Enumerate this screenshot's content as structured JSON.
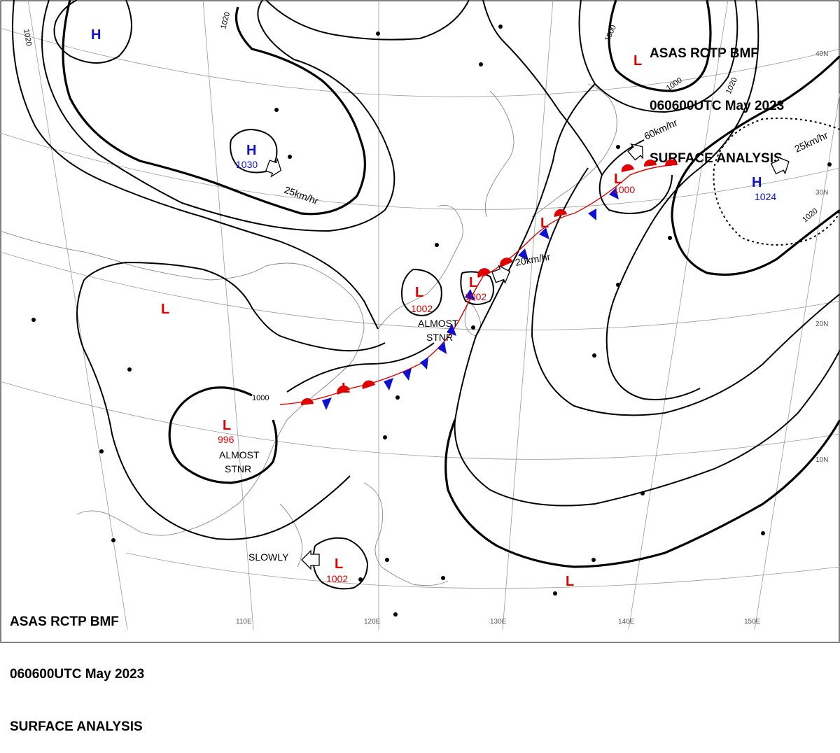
{
  "header": {
    "line1": "ASAS RCTP BMF",
    "line2": "060600UTC May 2023",
    "line3": "SURFACE ANALYSIS"
  },
  "footer": {
    "line1": "ASAS RCTP BMF",
    "line2": "060600UTC May 2023",
    "line3": "SURFACE ANALYSIS"
  },
  "grid_labels": {
    "lon_110": "110E",
    "lon_120": "120E",
    "lon_130": "130E",
    "lon_140": "140E",
    "lon_150": "150E",
    "lat_40": "40N",
    "lat_30": "30N",
    "lat_20": "20N",
    "lat_10": "10N"
  },
  "isobar_labels": {
    "nw_1020": "1020",
    "top_1020": "1020",
    "ne_1000": "1000",
    "ne_1000b": "1000",
    "ne_1020": "1020",
    "sw_1000": "1000",
    "e_1020": "1020"
  },
  "systems": {
    "high_nw": {
      "letter": "H",
      "pressure": ""
    },
    "high_1030": {
      "letter": "H",
      "pressure": "1030"
    },
    "high_1024": {
      "letter": "H",
      "pressure": "1024"
    },
    "low_ne": {
      "letter": "L",
      "pressure": ""
    },
    "low_1000": {
      "letter": "L",
      "pressure": "1000"
    },
    "low_1002_east": {
      "letter": "L",
      "pressure": "1002"
    },
    "low_1002_mid": {
      "letter": "L",
      "pressure": "1002"
    },
    "low_west": {
      "letter": "L",
      "pressure": ""
    },
    "low_996": {
      "letter": "L",
      "pressure": "996"
    },
    "low_1002_south": {
      "letter": "L",
      "pressure": "1002"
    },
    "low_se": {
      "letter": "L",
      "pressure": ""
    }
  },
  "movements": {
    "high_1030": "25km/hr",
    "low_1000": "60km/hr",
    "high_1024": "25km/hr",
    "low_1002_east": "20km/hr",
    "low_1002_south": "SLOWLY"
  },
  "notes": {
    "mid_line1": "ALMOST",
    "mid_line2": "STNR",
    "sw_line1": "ALMOST",
    "sw_line2": "STNR"
  },
  "colors": {
    "high": "#1010d0",
    "low": "#e00000",
    "cold_front": "#1010d0",
    "warm_front": "#e00000",
    "isobar": "#000000",
    "coast": "#8a8a8a",
    "grid": "#9a9a9a"
  }
}
